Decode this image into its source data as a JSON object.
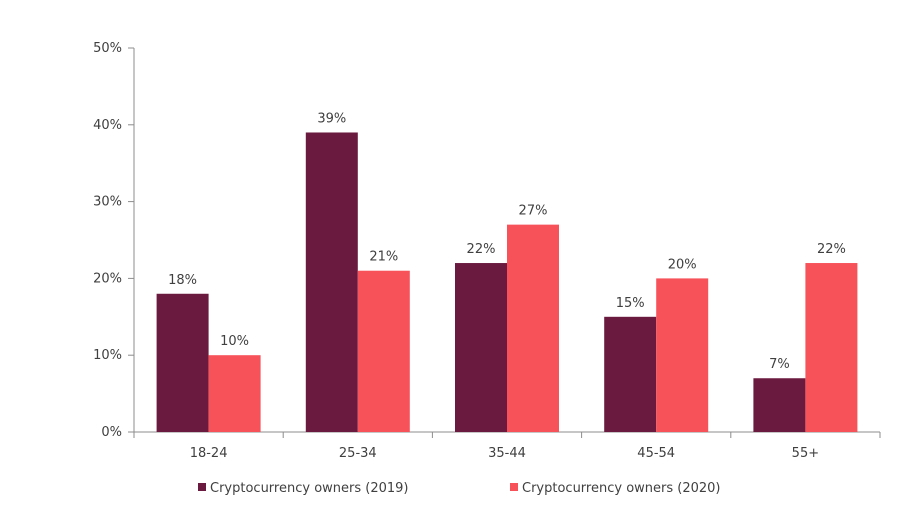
{
  "chart_data": {
    "type": "bar",
    "categories": [
      "18-24",
      "25-34",
      "35-44",
      "45-54",
      "55+"
    ],
    "series": [
      {
        "name": "Cryptocurrency owners (2019)",
        "values": [
          18,
          39,
          22,
          15,
          7
        ],
        "color": "#6b1a3f"
      },
      {
        "name": "Cryptocurrency owners (2020)",
        "values": [
          10,
          21,
          27,
          20,
          22
        ],
        "color": "#f7525a"
      }
    ],
    "data_labels": [
      [
        "18%",
        "39%",
        "22%",
        "15%",
        "7%"
      ],
      [
        "10%",
        "21%",
        "27%",
        "20%",
        "22%"
      ]
    ],
    "yticks": [
      "0%",
      "10%",
      "20%",
      "30%",
      "40%",
      "50%"
    ],
    "ylim": [
      0,
      50
    ],
    "grid": false,
    "legend_position": "bottom"
  }
}
